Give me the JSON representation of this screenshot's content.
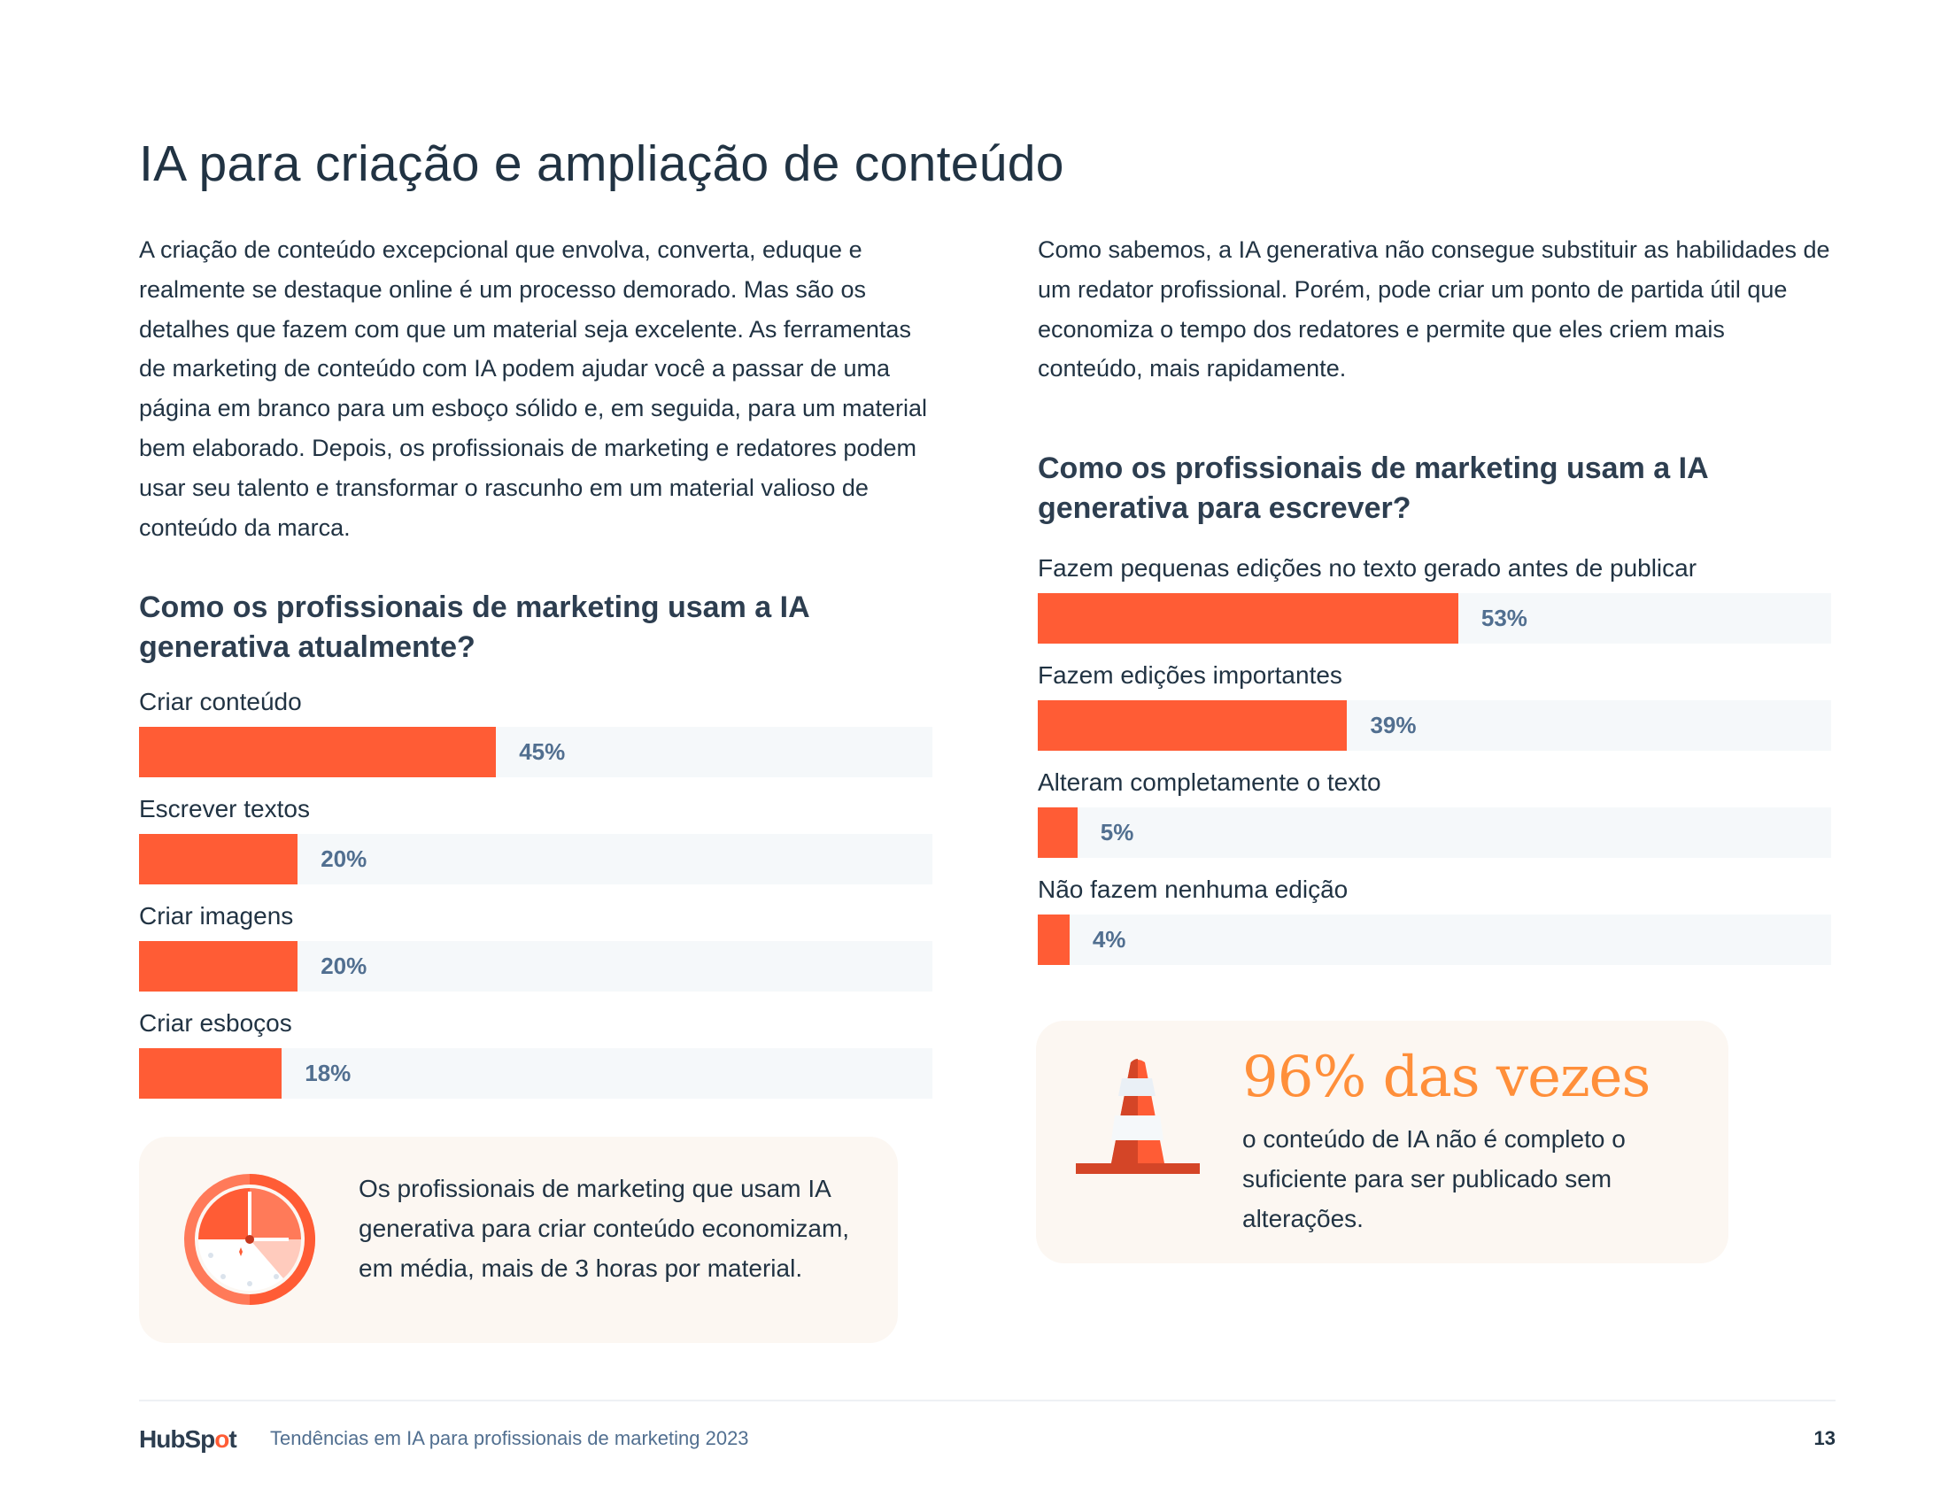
{
  "title": "IA para criação e ampliação de conteúdo",
  "left_paragraph": "A criação de conteúdo excepcional que envolva, converta, eduque e realmente se destaque online é um processo demorado. Mas são os detalhes que fazem com que um material seja excelente. As ferramentas de marketing de conteúdo com IA podem ajudar você a passar de uma página em branco para um esboço sólido e, em seguida, para um material bem elaborado. Depois, os profissionais de marketing e redatores podem usar seu talento e transformar o rascunho em um material valioso de conteúdo da marca.",
  "right_paragraph": "Como sabemos, a IA generativa não consegue substituir as habilidades de um redator profissional. Porém, pode criar um ponto de partida útil que economiza o tempo dos redatores e permite que eles criem mais conteúdo, mais rapidamente.",
  "chart_data": [
    {
      "type": "bar",
      "orientation": "horizontal",
      "title": "Como os profissionais de marketing usam a IA generativa atualmente?",
      "categories": [
        "Criar conteúdo",
        "Escrever textos",
        "Criar imagens",
        "Criar esboços"
      ],
      "values": [
        45,
        20,
        20,
        18
      ],
      "value_labels": [
        "45%",
        "20%",
        "20%",
        "18%"
      ],
      "xlim": [
        0,
        100
      ],
      "bar_color": "#ff5c35",
      "track_color": "#f5f8fa"
    },
    {
      "type": "bar",
      "orientation": "horizontal",
      "title": "Como os profissionais de marketing usam a IA generativa para escrever?",
      "categories": [
        "Fazem pequenas edições no texto gerado antes de publicar",
        "Fazem edições importantes",
        "Alteram completamente o texto",
        "Não fazem nenhuma edição"
      ],
      "values": [
        53,
        39,
        5,
        4
      ],
      "value_labels": [
        "53%",
        "39%",
        "5%",
        "4%"
      ],
      "xlim": [
        0,
        100
      ],
      "bar_color": "#ff5c35",
      "track_color": "#f5f8fa"
    }
  ],
  "left_callout": {
    "icon": "stopwatch-icon",
    "text": "Os profissionais de marketing que usam IA generativa para criar conteúdo economizam, em média, mais de 3 horas por material."
  },
  "right_callout": {
    "icon": "traffic-cone-icon",
    "stat": "96% das vezes",
    "text": "o conteúdo de IA não é completo o suficiente para ser publicado sem alterações."
  },
  "footer": {
    "logo": "HubSpot",
    "text": "Tendências em IA para profissionais de marketing 2023",
    "page_number": "13"
  }
}
